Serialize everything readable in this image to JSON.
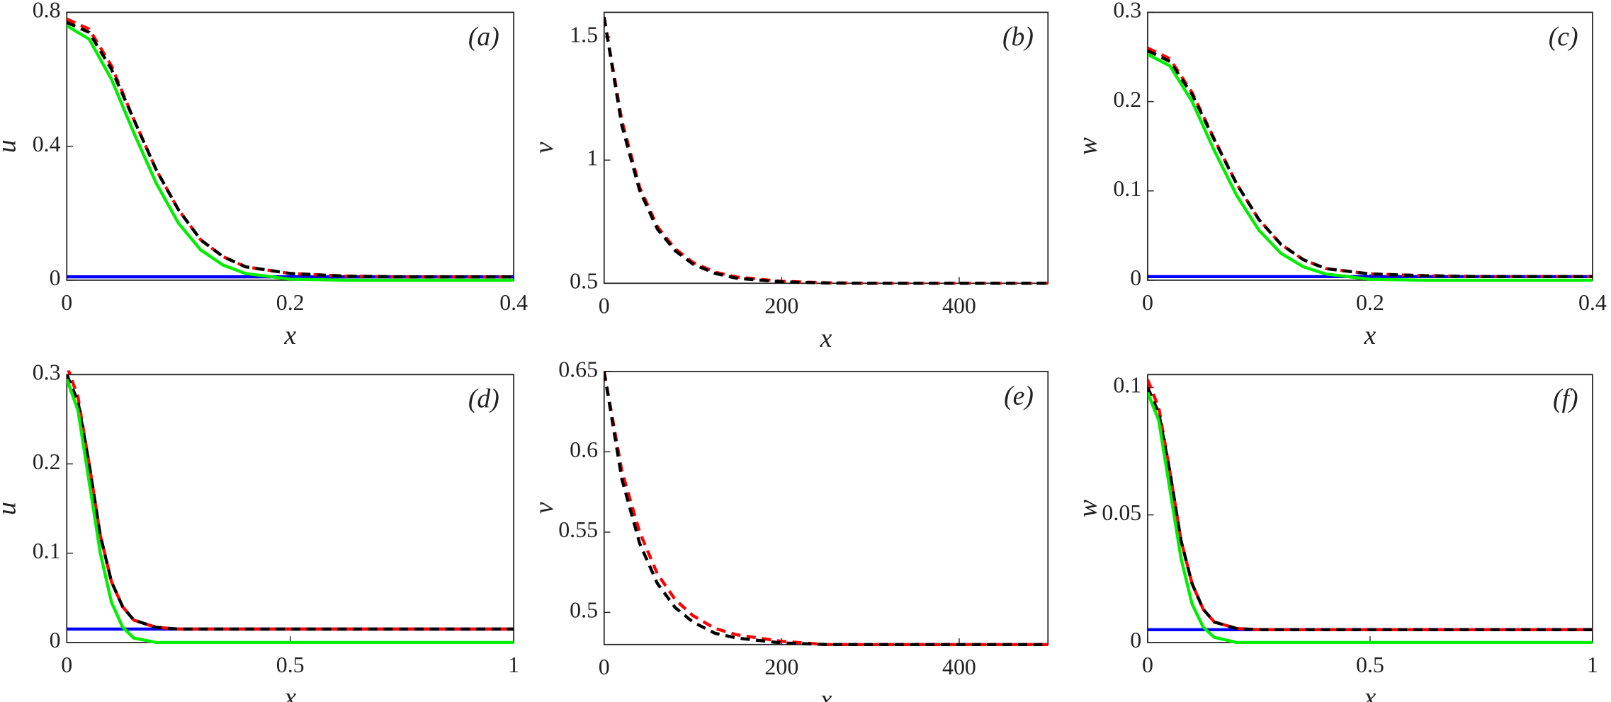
{
  "chart_data": [
    {
      "type": "line",
      "panel_label": "(a)",
      "xlabel": "x",
      "ylabel": "u",
      "x": [
        0,
        0.02,
        0.04,
        0.06,
        0.08,
        0.1,
        0.12,
        0.14,
        0.16,
        0.2,
        0.25,
        0.3,
        0.4
      ],
      "xlim": [
        0,
        0.4
      ],
      "xticks": [
        0,
        0.2,
        0.4
      ],
      "ylim": [
        0,
        0.8
      ],
      "yticks": [
        0,
        0.4,
        0.8
      ],
      "series": [
        {
          "color": "#0000ff",
          "style": "solid",
          "values": [
            0.01,
            0.01,
            0.01,
            0.01,
            0.01,
            0.01,
            0.01,
            0.01,
            0.01,
            0.01,
            0.01,
            0.01,
            0.01
          ]
        },
        {
          "color": "#ff0000",
          "style": "dashed",
          "values": [
            0.78,
            0.75,
            0.64,
            0.48,
            0.33,
            0.21,
            0.12,
            0.07,
            0.04,
            0.02,
            0.012,
            0.01,
            0.01
          ]
        },
        {
          "color": "#000000",
          "style": "dashed",
          "values": [
            0.77,
            0.74,
            0.63,
            0.48,
            0.33,
            0.21,
            0.12,
            0.07,
            0.04,
            0.02,
            0.012,
            0.01,
            0.01
          ]
        },
        {
          "color": "#00ee00",
          "style": "solid",
          "values": [
            0.76,
            0.72,
            0.6,
            0.44,
            0.29,
            0.17,
            0.09,
            0.045,
            0.02,
            0.003,
            0,
            0,
            0
          ]
        }
      ]
    },
    {
      "type": "line",
      "panel_label": "(b)",
      "xlabel": "x",
      "ylabel": "v",
      "x": [
        0,
        20,
        40,
        60,
        80,
        100,
        125,
        150,
        200,
        250,
        300,
        400,
        500
      ],
      "xlim": [
        0,
        500
      ],
      "xticks": [
        0,
        200,
        400
      ],
      "ylim": [
        0.5,
        1.6
      ],
      "yticks": [
        0.5,
        1,
        1.5
      ],
      "series": [
        {
          "color": "#ff0000",
          "style": "dashed",
          "values": [
            1.58,
            1.16,
            0.89,
            0.73,
            0.64,
            0.585,
            0.545,
            0.525,
            0.508,
            0.502,
            0.5,
            0.5,
            0.5
          ]
        },
        {
          "color": "#000000",
          "style": "dashed",
          "values": [
            1.58,
            1.14,
            0.877,
            0.72,
            0.632,
            0.578,
            0.54,
            0.52,
            0.506,
            0.501,
            0.5,
            0.5,
            0.5
          ]
        }
      ]
    },
    {
      "type": "line",
      "panel_label": "(c)",
      "xlabel": "x",
      "ylabel": "w",
      "x": [
        0,
        0.02,
        0.04,
        0.06,
        0.08,
        0.1,
        0.12,
        0.14,
        0.16,
        0.2,
        0.25,
        0.3,
        0.4
      ],
      "xlim": [
        0,
        0.4
      ],
      "xticks": [
        0,
        0.2,
        0.4
      ],
      "ylim": [
        0,
        0.3
      ],
      "yticks": [
        0,
        0.1,
        0.2,
        0.3
      ],
      "series": [
        {
          "color": "#0000ff",
          "style": "solid",
          "values": [
            0.004,
            0.004,
            0.004,
            0.004,
            0.004,
            0.004,
            0.004,
            0.004,
            0.004,
            0.004,
            0.004,
            0.004,
            0.004
          ]
        },
        {
          "color": "#ff0000",
          "style": "dashed",
          "values": [
            0.26,
            0.248,
            0.21,
            0.158,
            0.108,
            0.068,
            0.04,
            0.023,
            0.013,
            0.007,
            0.005,
            0.004,
            0.004
          ]
        },
        {
          "color": "#000000",
          "style": "dashed",
          "values": [
            0.257,
            0.245,
            0.208,
            0.157,
            0.108,
            0.068,
            0.04,
            0.023,
            0.013,
            0.007,
            0.005,
            0.004,
            0.004
          ]
        },
        {
          "color": "#00ee00",
          "style": "solid",
          "values": [
            0.253,
            0.24,
            0.2,
            0.145,
            0.095,
            0.056,
            0.03,
            0.015,
            0.007,
            0.001,
            0,
            0,
            0
          ]
        }
      ]
    },
    {
      "type": "line",
      "panel_label": "(d)",
      "xlabel": "x",
      "ylabel": "u",
      "x": [
        0,
        0.025,
        0.05,
        0.075,
        0.1,
        0.125,
        0.15,
        0.2,
        0.25,
        0.3,
        0.5,
        0.75,
        1
      ],
      "xlim": [
        0,
        1
      ],
      "xticks": [
        0,
        0.5,
        1
      ],
      "ylim": [
        0,
        0.3
      ],
      "yticks": [
        0,
        0.1,
        0.2,
        0.3
      ],
      "series": [
        {
          "color": "#0000ff",
          "style": "solid",
          "values": [
            0.015,
            0.015,
            0.015,
            0.015,
            0.015,
            0.015,
            0.015,
            0.015,
            0.015,
            0.015,
            0.015,
            0.015,
            0.015
          ]
        },
        {
          "color": "#ff0000",
          "style": "dashed",
          "values": [
            0.31,
            0.275,
            0.2,
            0.12,
            0.068,
            0.04,
            0.025,
            0.017,
            0.015,
            0.015,
            0.015,
            0.015,
            0.015
          ]
        },
        {
          "color": "#000000",
          "style": "dashed",
          "values": [
            0.3,
            0.27,
            0.2,
            0.12,
            0.068,
            0.04,
            0.025,
            0.017,
            0.015,
            0.015,
            0.015,
            0.015,
            0.015
          ]
        },
        {
          "color": "#00ee00",
          "style": "solid",
          "values": [
            0.295,
            0.26,
            0.18,
            0.1,
            0.045,
            0.017,
            0.005,
            0,
            0,
            0,
            0,
            0,
            0
          ]
        }
      ]
    },
    {
      "type": "line",
      "panel_label": "(e)",
      "xlabel": "x",
      "ylabel": "v",
      "x": [
        0,
        20,
        40,
        60,
        80,
        100,
        125,
        150,
        200,
        250,
        300,
        400,
        500
      ],
      "xlim": [
        0,
        500
      ],
      "xticks": [
        0,
        200,
        400
      ],
      "ylim": [
        0.48,
        0.65
      ],
      "yticks": [
        0.5,
        0.55,
        0.6,
        0.65
      ],
      "series": [
        {
          "color": "#ff0000",
          "style": "dashed",
          "values": [
            0.65,
            0.588,
            0.55,
            0.524,
            0.508,
            0.498,
            0.49,
            0.486,
            0.482,
            0.48,
            0.48,
            0.48,
            0.48
          ]
        },
        {
          "color": "#000000",
          "style": "dashed",
          "values": [
            0.65,
            0.583,
            0.543,
            0.518,
            0.503,
            0.494,
            0.487,
            0.484,
            0.481,
            0.48,
            0.48,
            0.48,
            0.48
          ]
        }
      ]
    },
    {
      "type": "line",
      "panel_label": "(f)",
      "xlabel": "x",
      "ylabel": "w",
      "x": [
        0,
        0.025,
        0.05,
        0.075,
        0.1,
        0.125,
        0.15,
        0.2,
        0.25,
        0.3,
        0.5,
        0.75,
        1
      ],
      "xlim": [
        0,
        1
      ],
      "xticks": [
        0,
        0.5,
        1
      ],
      "ylim": [
        0,
        0.105
      ],
      "yticks": [
        0,
        0.05,
        0.1
      ],
      "series": [
        {
          "color": "#0000ff",
          "style": "solid",
          "values": [
            0.005,
            0.005,
            0.005,
            0.005,
            0.005,
            0.005,
            0.005,
            0.005,
            0.005,
            0.005,
            0.005,
            0.005,
            0.005
          ]
        },
        {
          "color": "#ff0000",
          "style": "dashed",
          "values": [
            0.103,
            0.092,
            0.067,
            0.04,
            0.023,
            0.013,
            0.008,
            0.0055,
            0.005,
            0.005,
            0.005,
            0.005,
            0.005
          ]
        },
        {
          "color": "#000000",
          "style": "dashed",
          "values": [
            0.1,
            0.09,
            0.067,
            0.04,
            0.023,
            0.013,
            0.008,
            0.0055,
            0.005,
            0.005,
            0.005,
            0.005,
            0.005
          ]
        },
        {
          "color": "#00ee00",
          "style": "solid",
          "values": [
            0.098,
            0.087,
            0.06,
            0.033,
            0.015,
            0.006,
            0.002,
            0,
            0,
            0,
            0,
            0,
            0
          ]
        }
      ]
    }
  ]
}
